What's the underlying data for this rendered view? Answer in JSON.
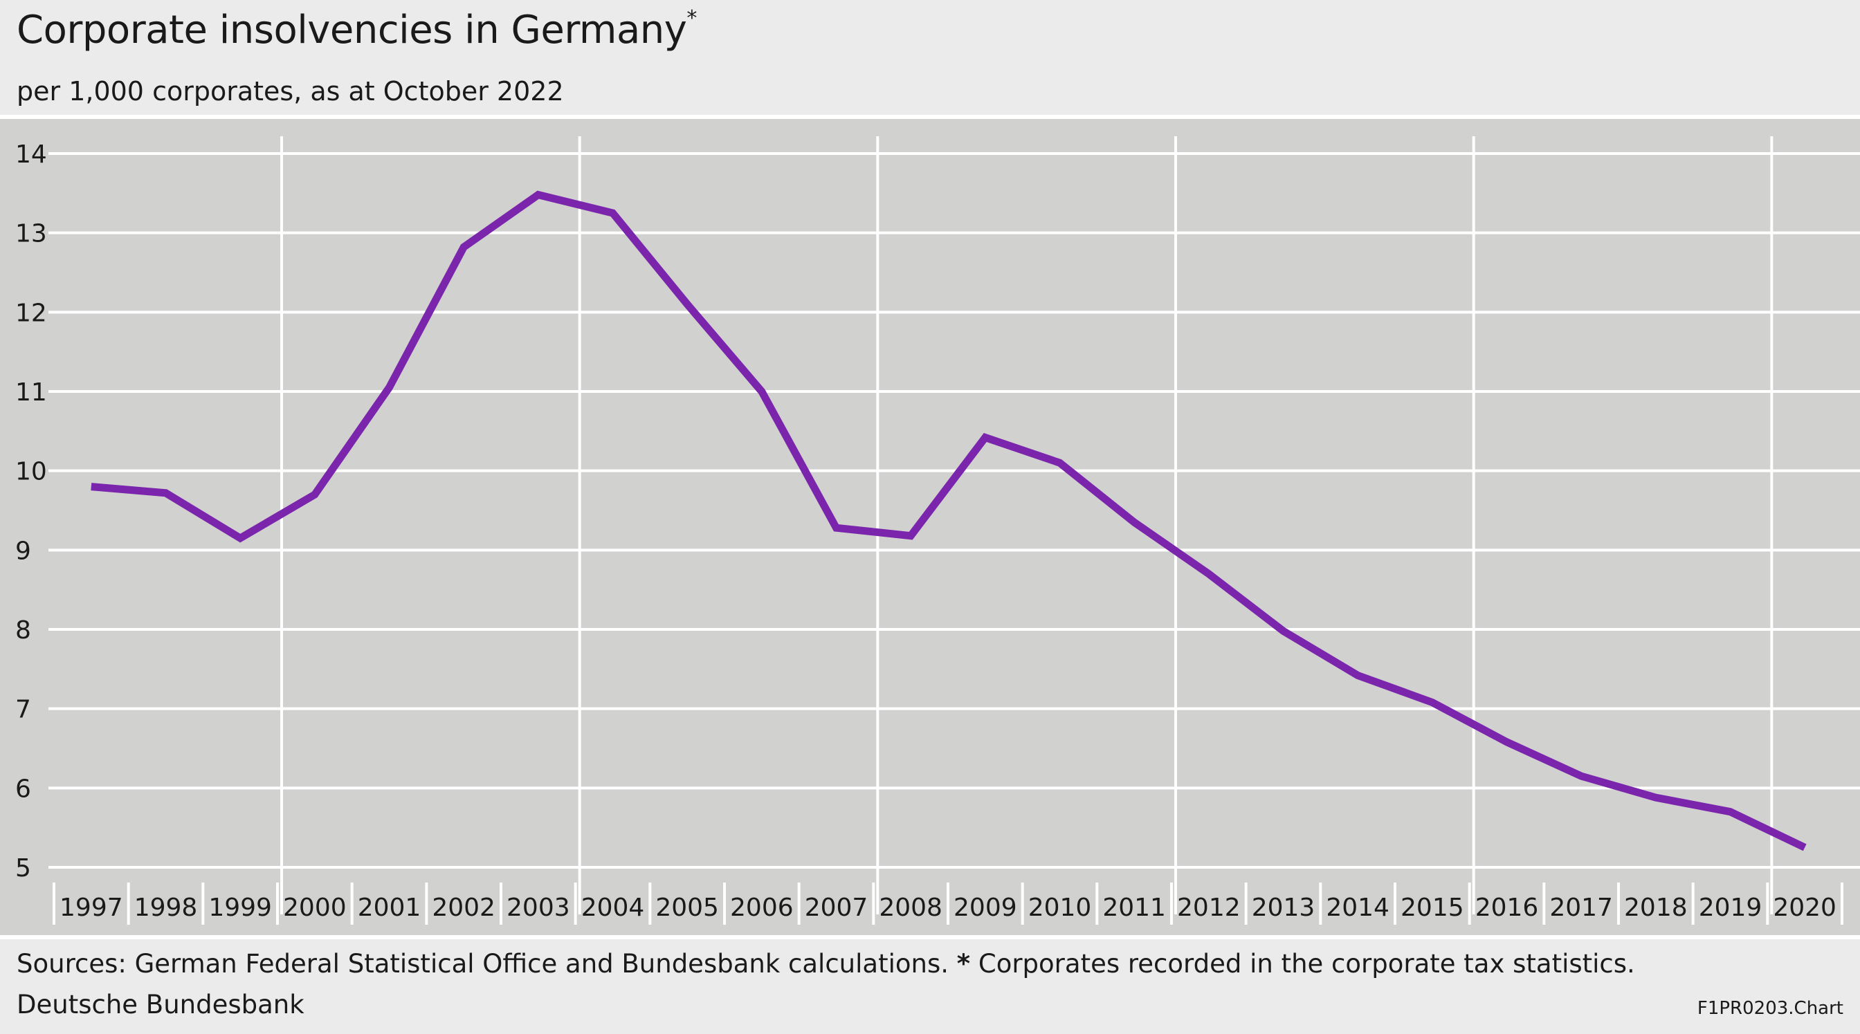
{
  "header": {
    "title": "Corporate insolvencies in Germany",
    "title_note_mark": "*",
    "subtitle": "per 1,000 corporates, as at October 2022"
  },
  "footer": {
    "sources": "Sources: German Federal Statistical Office and Bundesbank calculations.",
    "note_mark": "*",
    "note_text": "Corporates recorded in the corporate tax statistics.",
    "publisher": "Deutsche Bundesbank",
    "chart_id": "F1PR0203.Chart"
  },
  "colors": {
    "background": "#ebebeb",
    "plot_background": "#d1d1d0",
    "gridline": "#ffffff",
    "series": "#7b25ad"
  },
  "chart_data": {
    "type": "line",
    "title": "Corporate insolvencies in Germany",
    "subtitle": "per 1,000 corporates, as at October 2022",
    "xlabel": "",
    "ylabel": "",
    "categories": [
      "1997",
      "1998",
      "1999",
      "2000",
      "2001",
      "2002",
      "2003",
      "2004",
      "2005",
      "2006",
      "2007",
      "2008",
      "2009",
      "2010",
      "2011",
      "2012",
      "2013",
      "2014",
      "2015",
      "2016",
      "2017",
      "2018",
      "2019",
      "2020"
    ],
    "series": [
      {
        "values": [
          9.8,
          9.72,
          9.15,
          9.7,
          11.05,
          12.82,
          13.48,
          13.25,
          12.1,
          11.0,
          9.28,
          9.18,
          10.42,
          10.1,
          9.35,
          8.7,
          7.98,
          7.42,
          7.08,
          6.58,
          6.15,
          5.88,
          5.7,
          5.25
        ]
      }
    ],
    "yticks": [
      5,
      6,
      7,
      8,
      9,
      10,
      11,
      12,
      13,
      14
    ],
    "ylim": [
      4.5,
      14.2
    ],
    "grid": {
      "horizontal": true,
      "vertical_every_4_years_from": "2000"
    },
    "legend": "none"
  }
}
